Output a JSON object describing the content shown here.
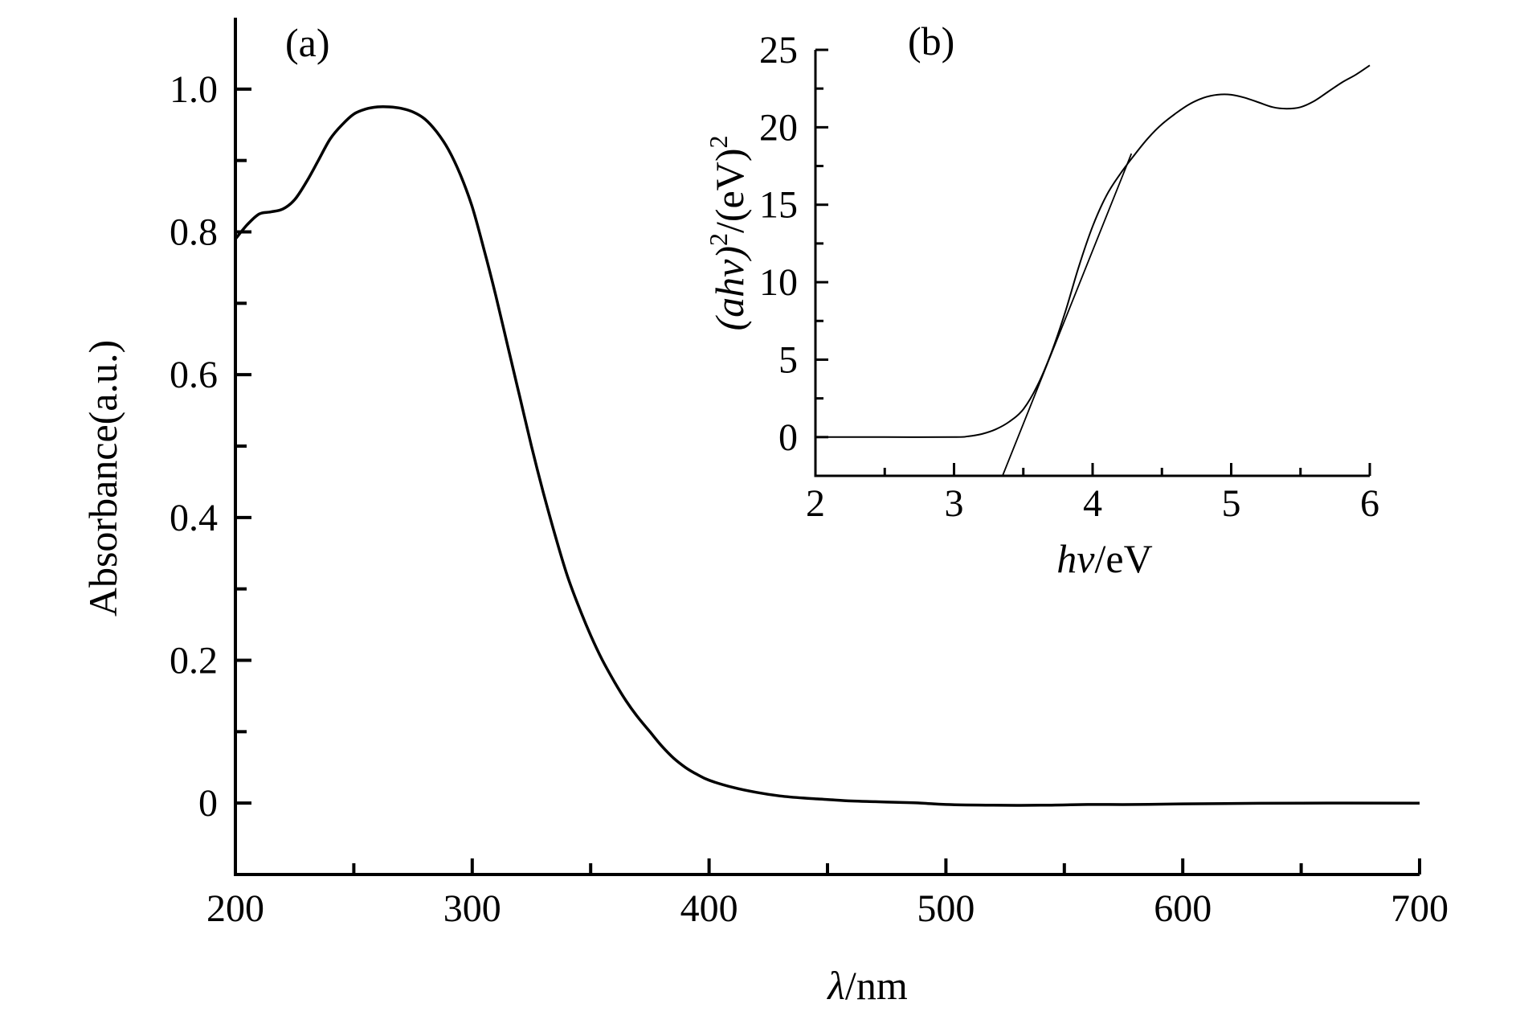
{
  "chart_data": [
    {
      "id": "a",
      "type": "line",
      "panel_label": "(a)",
      "xlabel": {
        "symbol": "λ",
        "unit": "/nm"
      },
      "ylabel": "Absorbance(a.u.)",
      "xlim": [
        200,
        700
      ],
      "ylim": [
        -0.1,
        1.1
      ],
      "xticks": [
        200,
        300,
        400,
        500,
        600,
        700
      ],
      "xtick_labels": [
        "200",
        "300",
        "400",
        "500",
        "600",
        "700"
      ],
      "xminor": [
        250,
        350,
        450,
        550,
        650
      ],
      "yticks": [
        0,
        0.2,
        0.4,
        0.6,
        0.8,
        1.0
      ],
      "ytick_labels": [
        "0",
        "0.2",
        "0.4",
        "0.6",
        "0.8",
        "1.0"
      ],
      "yminor": [
        0.1,
        0.3,
        0.5,
        0.7,
        0.9
      ],
      "grid": false,
      "series": [
        {
          "x": [
            200,
            205,
            210,
            215,
            220,
            225,
            230,
            235,
            240,
            245,
            250,
            255,
            260,
            265,
            270,
            275,
            280,
            285,
            290,
            295,
            300,
            305,
            310,
            315,
            320,
            325,
            330,
            335,
            340,
            345,
            350,
            355,
            360,
            365,
            370,
            375,
            380,
            385,
            390,
            395,
            400,
            410,
            420,
            430,
            440,
            450,
            460,
            470,
            480,
            490,
            500,
            520,
            540,
            560,
            580,
            600,
            650,
            700
          ],
          "y": [
            0.79,
            0.81,
            0.825,
            0.828,
            0.832,
            0.845,
            0.87,
            0.9,
            0.93,
            0.95,
            0.965,
            0.972,
            0.975,
            0.975,
            0.973,
            0.968,
            0.958,
            0.94,
            0.915,
            0.88,
            0.835,
            0.775,
            0.71,
            0.64,
            0.57,
            0.5,
            0.435,
            0.375,
            0.32,
            0.275,
            0.235,
            0.2,
            0.17,
            0.143,
            0.12,
            0.1,
            0.08,
            0.063,
            0.05,
            0.04,
            0.032,
            0.022,
            0.015,
            0.01,
            0.007,
            0.005,
            0.003,
            0.002,
            0.001,
            0.0,
            -0.002,
            -0.003,
            -0.003,
            -0.002,
            -0.002,
            -0.001,
            0.0,
            0.0
          ]
        }
      ]
    },
    {
      "id": "b",
      "type": "line",
      "panel_label": "(b)",
      "xlabel": {
        "symbol": "hv",
        "unit": "/eV"
      },
      "ylabel": {
        "symbol": "(ahv)",
        "exp": "2",
        "unit": "/(eV)",
        "unit_exp": "2"
      },
      "xlim": [
        2,
        6
      ],
      "ylim": [
        -2.5,
        25
      ],
      "xticks": [
        2,
        3,
        4,
        5,
        6
      ],
      "xtick_labels": [
        "2",
        "3",
        "4",
        "5",
        "6"
      ],
      "xminor": [
        2.5,
        3.5,
        4.5,
        5.5
      ],
      "yticks": [
        0,
        5,
        10,
        15,
        20,
        25
      ],
      "ytick_labels": [
        "0",
        "5",
        "10",
        "15",
        "20",
        "25"
      ],
      "yminor": [
        2.5,
        7.5,
        12.5,
        17.5,
        22.5
      ],
      "grid": false,
      "series": [
        {
          "x": [
            2.0,
            2.5,
            3.0,
            3.1,
            3.2,
            3.3,
            3.4,
            3.5,
            3.6,
            3.7,
            3.8,
            3.9,
            4.0,
            4.1,
            4.2,
            4.3,
            4.4,
            4.5,
            4.6,
            4.7,
            4.8,
            4.9,
            5.0,
            5.1,
            5.2,
            5.3,
            5.4,
            5.5,
            5.6,
            5.7,
            5.8,
            5.9,
            6.0
          ],
          "y": [
            0.0,
            0.0,
            0.0,
            0.05,
            0.2,
            0.5,
            1.0,
            1.8,
            3.3,
            5.4,
            8.0,
            11.0,
            13.6,
            15.6,
            17.0,
            18.2,
            19.3,
            20.2,
            20.9,
            21.5,
            21.9,
            22.1,
            22.1,
            21.9,
            21.6,
            21.3,
            21.2,
            21.3,
            21.7,
            22.3,
            22.9,
            23.4,
            24.0
          ]
        }
      ],
      "tangent": {
        "x": [
          3.35,
          4.28
        ],
        "y": [
          -2.5,
          18.3
        ]
      }
    }
  ]
}
